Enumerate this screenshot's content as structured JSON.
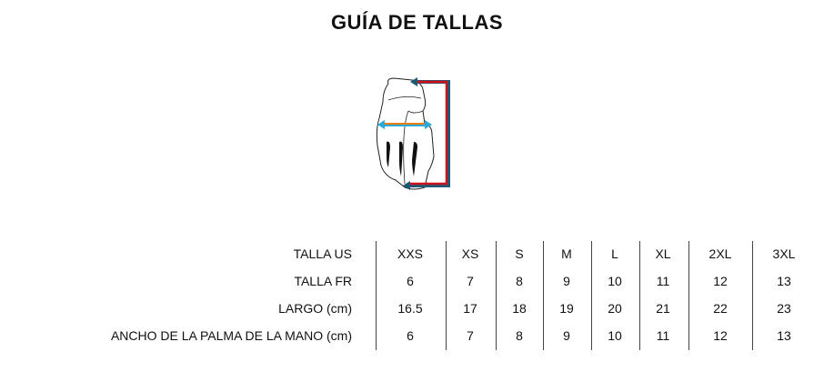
{
  "title": "GUÍA DE TALLAS",
  "icon": "glove-measurement-diagram",
  "table": {
    "rows": [
      {
        "label": "TALLA US",
        "values": [
          "XXS",
          "XS",
          "S",
          "M",
          "L",
          "XL",
          "2XL",
          "3XL"
        ]
      },
      {
        "label": "TALLA FR",
        "values": [
          "6",
          "7",
          "8",
          "9",
          "10",
          "11",
          "12",
          "13"
        ]
      },
      {
        "label": "LARGO (cm)",
        "values": [
          "16.5",
          "17",
          "18",
          "19",
          "20",
          "21",
          "22",
          "23"
        ]
      },
      {
        "label": "ANCHO DE LA PALMA DE LA MANO (cm)",
        "values": [
          "6",
          "7",
          "8",
          "9",
          "10",
          "11",
          "12",
          "13"
        ]
      }
    ]
  },
  "colors": {
    "length_arrow": "#d0101a",
    "length_arrow_outline": "#1d5a78",
    "width_arrow": "#e8801a",
    "width_arrow_outline": "#2aa8d8"
  }
}
